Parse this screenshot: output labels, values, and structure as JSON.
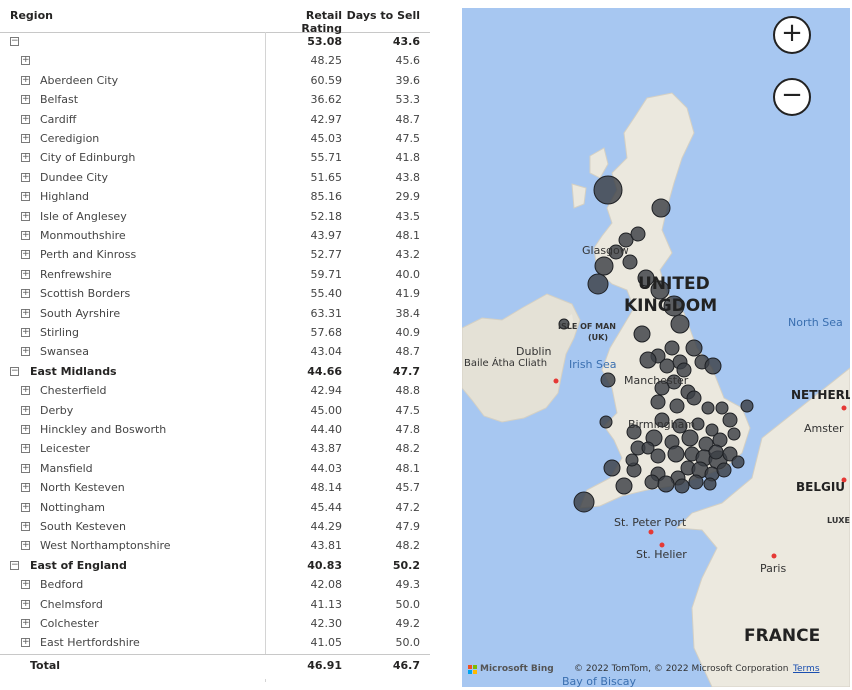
{
  "table": {
    "headers": {
      "region": "Region",
      "rating": "Retail Rating",
      "days": "Days to Sell"
    },
    "rows": [
      {
        "level": "top",
        "expand": "−",
        "label": "",
        "rating": "53.08",
        "days": "43.6"
      },
      {
        "level": "child",
        "expand": "+",
        "label": "",
        "rating": "48.25",
        "days": "45.6"
      },
      {
        "level": "child",
        "expand": "+",
        "label": "Aberdeen City",
        "rating": "60.59",
        "days": "39.6"
      },
      {
        "level": "child",
        "expand": "+",
        "label": "Belfast",
        "rating": "36.62",
        "days": "53.3"
      },
      {
        "level": "child",
        "expand": "+",
        "label": "Cardiff",
        "rating": "42.97",
        "days": "48.7"
      },
      {
        "level": "child",
        "expand": "+",
        "label": "Ceredigion",
        "rating": "45.03",
        "days": "47.5"
      },
      {
        "level": "child",
        "expand": "+",
        "label": "City of Edinburgh",
        "rating": "55.71",
        "days": "41.8"
      },
      {
        "level": "child",
        "expand": "+",
        "label": "Dundee City",
        "rating": "51.65",
        "days": "43.8"
      },
      {
        "level": "child",
        "expand": "+",
        "label": "Highland",
        "rating": "85.16",
        "days": "29.9"
      },
      {
        "level": "child",
        "expand": "+",
        "label": "Isle of Anglesey",
        "rating": "52.18",
        "days": "43.5"
      },
      {
        "level": "child",
        "expand": "+",
        "label": "Monmouthshire",
        "rating": "43.97",
        "days": "48.1"
      },
      {
        "level": "child",
        "expand": "+",
        "label": "Perth and Kinross",
        "rating": "52.77",
        "days": "43.2"
      },
      {
        "level": "child",
        "expand": "+",
        "label": "Renfrewshire",
        "rating": "59.71",
        "days": "40.0"
      },
      {
        "level": "child",
        "expand": "+",
        "label": "Scottish Borders",
        "rating": "55.40",
        "days": "41.9"
      },
      {
        "level": "child",
        "expand": "+",
        "label": "South Ayrshire",
        "rating": "63.31",
        "days": "38.4"
      },
      {
        "level": "child",
        "expand": "+",
        "label": "Stirling",
        "rating": "57.68",
        "days": "40.9"
      },
      {
        "level": "child",
        "expand": "+",
        "label": "Swansea",
        "rating": "43.04",
        "days": "48.7"
      },
      {
        "level": "top",
        "expand": "−",
        "label": "East Midlands",
        "rating": "44.66",
        "days": "47.7"
      },
      {
        "level": "child",
        "expand": "+",
        "label": "Chesterfield",
        "rating": "42.94",
        "days": "48.8"
      },
      {
        "level": "child",
        "expand": "+",
        "label": "Derby",
        "rating": "45.00",
        "days": "47.5"
      },
      {
        "level": "child",
        "expand": "+",
        "label": "Hinckley and Bosworth",
        "rating": "44.40",
        "days": "47.8"
      },
      {
        "level": "child",
        "expand": "+",
        "label": "Leicester",
        "rating": "43.87",
        "days": "48.2"
      },
      {
        "level": "child",
        "expand": "+",
        "label": "Mansfield",
        "rating": "44.03",
        "days": "48.1"
      },
      {
        "level": "child",
        "expand": "+",
        "label": "North Kesteven",
        "rating": "48.14",
        "days": "45.7"
      },
      {
        "level": "child",
        "expand": "+",
        "label": "Nottingham",
        "rating": "45.44",
        "days": "47.2"
      },
      {
        "level": "child",
        "expand": "+",
        "label": "South Kesteven",
        "rating": "44.29",
        "days": "47.9"
      },
      {
        "level": "child",
        "expand": "+",
        "label": "West Northamptonshire",
        "rating": "43.81",
        "days": "48.2"
      },
      {
        "level": "top",
        "expand": "−",
        "label": "East of England",
        "rating": "40.83",
        "days": "50.2"
      },
      {
        "level": "child",
        "expand": "+",
        "label": "Bedford",
        "rating": "42.08",
        "days": "49.3"
      },
      {
        "level": "child",
        "expand": "+",
        "label": "Chelmsford",
        "rating": "41.13",
        "days": "50.0"
      },
      {
        "level": "child",
        "expand": "+",
        "label": "Colchester",
        "rating": "42.30",
        "days": "49.2"
      },
      {
        "level": "child",
        "expand": "+",
        "label": "East Hertfordshire",
        "rating": "41.05",
        "days": "50.0"
      }
    ],
    "total": {
      "label": "Total",
      "rating": "46.91",
      "days": "46.7"
    }
  },
  "map": {
    "zoom_in": "+",
    "zoom_out": "−",
    "labels": {
      "uk1": "UNITED",
      "uk2": "KINGDOM",
      "north_sea": "North Sea",
      "isle_of_man": "ISLE OF MAN",
      "uk_abbr": "(UK)",
      "dublin": "Dublin",
      "baile": "Baile Átha Cliath",
      "irish_sea": "Irish Sea",
      "glasgow": "Glasgow",
      "manchester": "Manchester",
      "birmingham": "Birmingham",
      "netherlands": "NETHERL",
      "amsterdam": "Amster",
      "belgium": "BELGIU",
      "luxembourg": "LUXE",
      "st_peter": "St. Peter Port",
      "st_helier": "St. Helier",
      "paris": "Paris",
      "france": "FRANCE",
      "bay_of_biscay": "Bay of Biscay"
    },
    "attribution": {
      "bing": "Microsoft Bing",
      "copyright": "© 2022 TomTom, © 2022 Microsoft Corporation",
      "terms": "Terms"
    },
    "colors": {
      "water": "#a7c7f1",
      "land": "#e9e6dc",
      "bubble": "#3c3f46"
    }
  }
}
